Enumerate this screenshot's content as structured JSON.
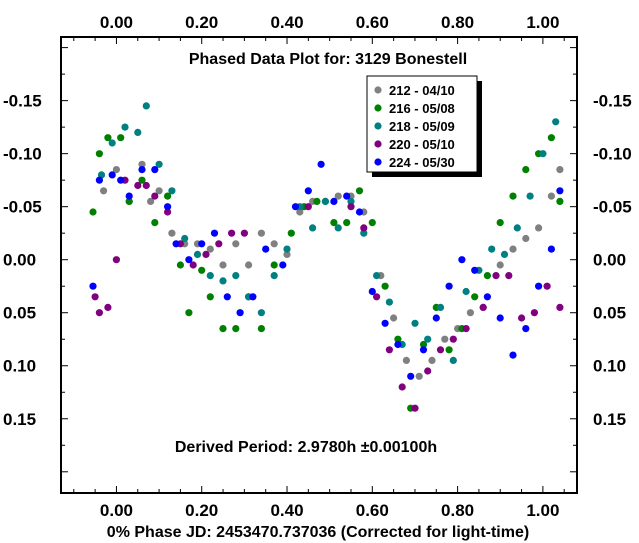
{
  "chart_data": {
    "type": "scatter",
    "title": "Phased Data Plot for: 3129 Bonestell",
    "xlabel": "0% Phase JD:  2453470.737036   (Corrected for light-time)",
    "annotation": "Derived Period: 2.9780h   ±0.00100h",
    "xlim": [
      -0.13,
      1.08
    ],
    "ylim": [
      0.22,
      -0.21
    ],
    "y_inverted": true,
    "grid": false,
    "legend_position": "top-right",
    "x_ticks": [
      0.0,
      0.2,
      0.4,
      0.6,
      0.8,
      1.0
    ],
    "x_tick_labels": [
      "0.00",
      "0.20",
      "0.40",
      "0.60",
      "0.80",
      "1.00"
    ],
    "y_ticks": [
      -0.15,
      -0.1,
      -0.05,
      0.0,
      0.05,
      0.1,
      0.15
    ],
    "y_tick_labels": [
      "-0.15",
      "-0.10",
      "-0.05",
      "0.00",
      "0.05",
      "0.10",
      "0.15"
    ],
    "series": [
      {
        "name": "212 - 04/10",
        "color": "#808080",
        "points": [
          [
            -0.03,
            -0.065
          ],
          [
            0.0,
            -0.085
          ],
          [
            0.03,
            -0.055
          ],
          [
            0.06,
            -0.09
          ],
          [
            0.08,
            -0.055
          ],
          [
            0.1,
            -0.065
          ],
          [
            0.13,
            -0.025
          ],
          [
            0.16,
            -0.015
          ],
          [
            0.19,
            -0.015
          ],
          [
            0.22,
            -0.01
          ],
          [
            0.25,
            0.005
          ],
          [
            0.28,
            -0.015
          ],
          [
            0.31,
            0.005
          ],
          [
            0.34,
            -0.025
          ],
          [
            0.37,
            -0.015
          ],
          [
            0.4,
            -0.005
          ],
          [
            0.43,
            -0.045
          ],
          [
            0.46,
            -0.055
          ],
          [
            0.49,
            -0.055
          ],
          [
            0.52,
            -0.06
          ],
          [
            0.55,
            -0.06
          ],
          [
            0.58,
            -0.045
          ],
          [
            0.62,
            0.015
          ],
          [
            0.65,
            0.055
          ],
          [
            0.68,
            0.095
          ],
          [
            0.71,
            0.11
          ],
          [
            0.74,
            0.095
          ],
          [
            0.77,
            0.075
          ],
          [
            0.8,
            0.065
          ],
          [
            0.83,
            0.05
          ],
          [
            0.86,
            0.045
          ],
          [
            0.9,
            0.005
          ],
          [
            0.93,
            -0.01
          ],
          [
            0.96,
            -0.02
          ],
          [
            0.99,
            -0.03
          ],
          [
            1.02,
            -0.06
          ],
          [
            1.04,
            -0.085
          ]
        ]
      },
      {
        "name": "216 - 05/08",
        "color": "#008000",
        "points": [
          [
            -0.055,
            -0.045
          ],
          [
            -0.04,
            -0.1
          ],
          [
            -0.02,
            -0.115
          ],
          [
            0.01,
            -0.115
          ],
          [
            0.03,
            -0.055
          ],
          [
            0.06,
            -0.075
          ],
          [
            0.09,
            -0.035
          ],
          [
            0.12,
            -0.06
          ],
          [
            0.15,
            0.005
          ],
          [
            0.17,
            0.05
          ],
          [
            0.2,
            0.01
          ],
          [
            0.22,
            0.035
          ],
          [
            0.25,
            0.065
          ],
          [
            0.28,
            0.065
          ],
          [
            0.31,
            0.035
          ],
          [
            0.34,
            0.065
          ],
          [
            0.37,
            0.005
          ],
          [
            0.41,
            -0.025
          ],
          [
            0.44,
            -0.05
          ],
          [
            0.47,
            -0.055
          ],
          [
            0.51,
            -0.035
          ],
          [
            0.54,
            -0.035
          ],
          [
            0.57,
            -0.065
          ],
          [
            0.6,
            -0.035
          ],
          [
            0.63,
            0.025
          ],
          [
            0.66,
            0.075
          ],
          [
            0.69,
            0.14
          ],
          [
            0.72,
            0.08
          ],
          [
            0.75,
            0.045
          ],
          [
            0.78,
            0.085
          ],
          [
            0.81,
            0.065
          ],
          [
            0.84,
            0.035
          ],
          [
            0.87,
            0.015
          ],
          [
            0.9,
            -0.035
          ],
          [
            0.93,
            -0.06
          ],
          [
            0.96,
            -0.085
          ],
          [
            0.99,
            -0.1
          ],
          [
            1.02,
            -0.115
          ],
          [
            1.04,
            -0.055
          ]
        ]
      },
      {
        "name": "218 - 05/09",
        "color": "#008080",
        "points": [
          [
            -0.035,
            -0.08
          ],
          [
            -0.01,
            -0.11
          ],
          [
            0.02,
            -0.125
          ],
          [
            0.05,
            -0.12
          ],
          [
            0.07,
            -0.145
          ],
          [
            0.1,
            -0.09
          ],
          [
            0.13,
            -0.065
          ],
          [
            0.16,
            -0.02
          ],
          [
            0.19,
            -0.005
          ],
          [
            0.22,
            0.015
          ],
          [
            0.25,
            0.02
          ],
          [
            0.28,
            0.015
          ],
          [
            0.31,
            0.035
          ],
          [
            0.34,
            0.05
          ],
          [
            0.37,
            0.015
          ],
          [
            0.4,
            -0.01
          ],
          [
            0.43,
            -0.05
          ],
          [
            0.46,
            -0.03
          ],
          [
            0.49,
            -0.055
          ],
          [
            0.52,
            -0.03
          ],
          [
            0.55,
            -0.055
          ],
          [
            0.58,
            -0.025
          ],
          [
            0.61,
            0.015
          ],
          [
            0.64,
            0.04
          ],
          [
            0.67,
            0.08
          ],
          [
            0.7,
            0.06
          ],
          [
            0.73,
            0.075
          ],
          [
            0.76,
            0.045
          ],
          [
            0.79,
            0.095
          ],
          [
            0.82,
            0.03
          ],
          [
            0.85,
            0.01
          ],
          [
            0.88,
            -0.01
          ],
          [
            0.91,
            -0.005
          ],
          [
            0.94,
            -0.03
          ],
          [
            0.97,
            -0.06
          ],
          [
            1.0,
            -0.1
          ],
          [
            1.03,
            -0.13
          ]
        ]
      },
      {
        "name": "220 - 05/10",
        "color": "#800080",
        "points": [
          [
            -0.05,
            0.035
          ],
          [
            -0.04,
            0.05
          ],
          [
            -0.02,
            0.045
          ],
          [
            0.0,
            0.0
          ],
          [
            0.02,
            -0.075
          ],
          [
            0.05,
            -0.07
          ],
          [
            0.07,
            -0.07
          ],
          [
            0.09,
            -0.06
          ],
          [
            0.12,
            -0.045
          ],
          [
            0.15,
            -0.015
          ],
          [
            0.18,
            0.005
          ],
          [
            0.21,
            -0.005
          ],
          [
            0.24,
            -0.015
          ],
          [
            0.27,
            -0.025
          ],
          [
            0.3,
            -0.025
          ],
          [
            0.45,
            -0.05
          ],
          [
            0.55,
            -0.05
          ],
          [
            0.58,
            -0.03
          ],
          [
            0.61,
            0.035
          ],
          [
            0.64,
            0.085
          ],
          [
            0.67,
            0.12
          ],
          [
            0.7,
            0.14
          ],
          [
            0.73,
            0.105
          ],
          [
            0.76,
            0.085
          ],
          [
            0.79,
            0.075
          ],
          [
            0.82,
            0.065
          ],
          [
            0.86,
            0.045
          ],
          [
            0.89,
            0.015
          ],
          [
            0.92,
            0.015
          ],
          [
            0.95,
            0.055
          ],
          [
            0.98,
            0.05
          ],
          [
            1.01,
            0.025
          ],
          [
            1.04,
            0.045
          ]
        ]
      },
      {
        "name": "224 - 05/30",
        "color": "#0000ff",
        "points": [
          [
            -0.055,
            0.025
          ],
          [
            -0.04,
            -0.075
          ],
          [
            -0.01,
            -0.08
          ],
          [
            0.01,
            -0.075
          ],
          [
            0.03,
            -0.06
          ],
          [
            0.06,
            -0.085
          ],
          [
            0.09,
            -0.085
          ],
          [
            0.12,
            -0.05
          ],
          [
            0.14,
            -0.015
          ],
          [
            0.17,
            0.0
          ],
          [
            0.2,
            -0.015
          ],
          [
            0.23,
            -0.025
          ],
          [
            0.26,
            0.035
          ],
          [
            0.29,
            0.05
          ],
          [
            0.32,
            0.035
          ],
          [
            0.35,
            -0.01
          ],
          [
            0.39,
            0.005
          ],
          [
            0.42,
            -0.05
          ],
          [
            0.45,
            -0.065
          ],
          [
            0.48,
            -0.09
          ],
          [
            0.51,
            -0.055
          ],
          [
            0.54,
            -0.06
          ],
          [
            0.57,
            -0.045
          ],
          [
            0.6,
            0.03
          ],
          [
            0.63,
            0.06
          ],
          [
            0.66,
            0.08
          ],
          [
            0.69,
            0.11
          ],
          [
            0.72,
            0.085
          ],
          [
            0.75,
            0.055
          ],
          [
            0.78,
            0.025
          ],
          [
            0.81,
            0.0
          ],
          [
            0.84,
            0.01
          ],
          [
            0.87,
            0.035
          ],
          [
            0.9,
            0.055
          ],
          [
            0.93,
            0.09
          ],
          [
            0.96,
            0.065
          ],
          [
            0.99,
            0.025
          ],
          [
            1.02,
            -0.01
          ],
          [
            1.04,
            -0.065
          ]
        ]
      }
    ]
  }
}
